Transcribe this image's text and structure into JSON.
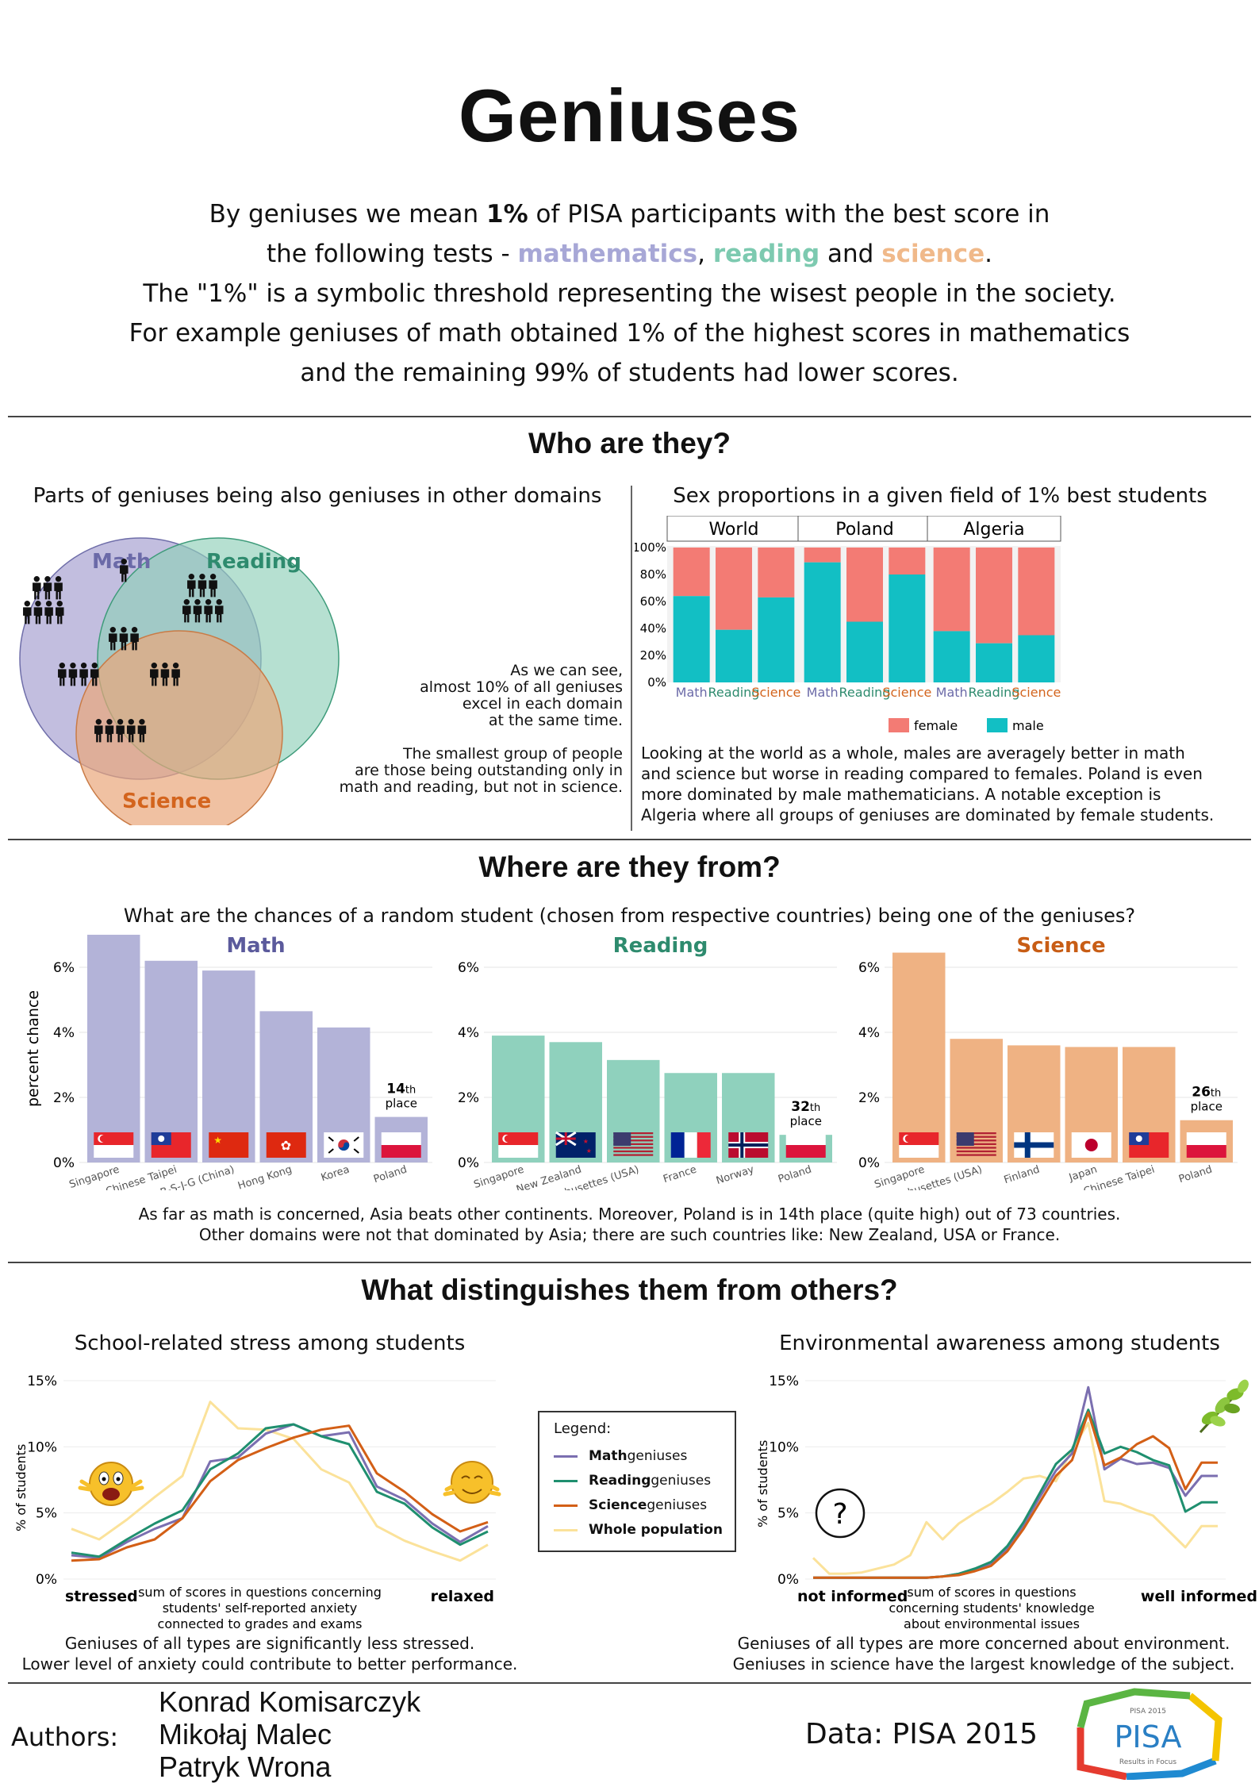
{
  "title": "Geniuses",
  "intro": {
    "l1a": "By geniuses we mean ",
    "l1b": "1%",
    "l1c": " of PISA participants with the best score in",
    "l2a": "the following tests - ",
    "l2math": "mathematics",
    "l2b": ", ",
    "l2read": "reading",
    "l2c": " and ",
    "l2sci": "science",
    "l2d": ".",
    "l3": "The \"1%\" is a symbolic threshold representing the wisest people in the society.",
    "l4": "For example geniuses of math obtained 1% of the highest scores in mathematics",
    "l5": "and the remaining 99% of students had lower scores."
  },
  "who": {
    "heading": "Who are they?",
    "venn": {
      "title": "Parts of geniuses being also geniuses in other domains",
      "math": "Math",
      "reading": "Reading",
      "science": "Science",
      "math_color": "#6b6aa8",
      "reading_color": "#2e8b6e",
      "science_color": "#d3641d"
    },
    "note1": [
      "As we can see,",
      "almost 10% of all geniuses",
      "excel in each domain",
      "at the same time."
    ],
    "note2": [
      "The smallest group of people",
      "are those being outstanding only in",
      "math and reading, but not in science."
    ],
    "sex": {
      "title": "Sex proportions in a given field of 1% best students",
      "female_label": "female",
      "male_label": "male",
      "female_color": "#f37b74",
      "male_color": "#12bfc4",
      "text": [
        "Looking at the world as a whole, males are averagely better in math",
        "and science but worse in reading compared to females. Poland is even",
        "more dominated by male mathematicians. A notable exception is",
        "Algeria where all groups of geniuses are dominated by female students."
      ]
    }
  },
  "where": {
    "heading": "Where are they from?",
    "subtitle": "What are the chances of a random student (chosen from respective countries) being one of the geniuses?",
    "ylabel": "percent chance",
    "text": [
      "As far as math is concerned, Asia beats other continents. Moreover, Poland is in 14th place (quite high) out of 73 countries.",
      "Other domains were not that dominated by Asia; there are such countries like: New Zealand, USA or France."
    ]
  },
  "distinguish": {
    "heading": "What distinguishes them from others?",
    "stress_title": "School-related stress among students",
    "env_title": "Environmental awareness among students",
    "ylabel": "% of students",
    "stress_left": "stressed",
    "stress_right": "relaxed",
    "stress_axis": [
      "sum of scores in questions concerning",
      "students' self-reported anxiety",
      "connected to grades and exams"
    ],
    "env_left": "not informed",
    "env_right": "well informed",
    "env_axis": [
      "sum of scores in questions",
      "concerning students' knowledge",
      "about environmental issues"
    ],
    "legend_title": "Legend:",
    "stress_text": [
      "Geniuses of all types are significantly less stressed.",
      "Lower level of anxiety could contribute to better performance."
    ],
    "env_text": [
      "Geniuses of all types are more concerned about environment.",
      "Geniuses in science have the largest knowledge of the subject."
    ]
  },
  "footer": {
    "authors_label": "Authors:",
    "authors": [
      "Konrad Komisarczyk",
      "Mikołaj Malec",
      "Patryk Wrona"
    ],
    "data_label": "Data: PISA 2015",
    "logo_top": "PISA 2015",
    "logo_main": "PISA",
    "logo_bottom": "Results in Focus"
  },
  "chart_data": [
    {
      "type": "bar",
      "subtype": "stacked-100",
      "panels": [
        "World",
        "Poland",
        "Algeria"
      ],
      "categories": [
        "Math",
        "Reading",
        "Science"
      ],
      "category_colors": [
        "#6b6aa8",
        "#2e8b6e",
        "#d3641d"
      ],
      "yticks": [
        "0%",
        "20%",
        "40%",
        "60%",
        "80%",
        "100%"
      ],
      "ylim": [
        0,
        100
      ],
      "series": [
        {
          "name": "male",
          "values": [
            [
              64,
              39,
              63
            ],
            [
              89,
              45,
              80
            ],
            [
              38,
              29,
              35
            ]
          ]
        },
        {
          "name": "female",
          "values": [
            [
              36,
              61,
              37
            ],
            [
              11,
              55,
              20
            ],
            [
              62,
              71,
              65
            ]
          ]
        }
      ],
      "legend": "bottom"
    },
    {
      "type": "bar",
      "title": "Math",
      "title_color": "#5b5a9c",
      "bar_color": "#b3b3d8",
      "categories": [
        "Singapore",
        "Chinese Taipei",
        "B-S-J-G (China)",
        "Hong Kong",
        "Korea",
        "Poland"
      ],
      "values": [
        7.0,
        6.2,
        5.9,
        4.65,
        4.15,
        1.4
      ],
      "yticks": [
        "0%",
        "2%",
        "4%",
        "6%"
      ],
      "ylim": [
        0,
        7
      ],
      "annotation": {
        "number": "14",
        "suffix": "th",
        "word": "place"
      }
    },
    {
      "type": "bar",
      "title": "Reading",
      "title_color": "#2e8b6e",
      "bar_color": "#8fd1bd",
      "categories": [
        "Singapore",
        "New Zealand",
        "Massachusettes (USA)",
        "France",
        "Norway",
        "Poland"
      ],
      "values": [
        3.9,
        3.7,
        3.15,
        2.75,
        2.75,
        0.85
      ],
      "yticks": [
        "0%",
        "2%",
        "4%",
        "6%"
      ],
      "ylim": [
        0,
        7
      ],
      "annotation": {
        "number": "32",
        "suffix": "th",
        "word": "place"
      }
    },
    {
      "type": "bar",
      "title": "Science",
      "title_color": "#c85d15",
      "bar_color": "#efb283",
      "categories": [
        "Singapore",
        "Massachusettes (USA)",
        "Finland",
        "Japan",
        "Chinese Taipei",
        "Poland"
      ],
      "values": [
        6.45,
        3.8,
        3.6,
        3.55,
        3.55,
        1.3
      ],
      "yticks": [
        "0%",
        "2%",
        "4%",
        "6%"
      ],
      "ylim": [
        0,
        7
      ],
      "annotation": {
        "number": "26",
        "suffix": "th",
        "word": "place"
      }
    },
    {
      "type": "line",
      "ylim": [
        0,
        15
      ],
      "yticks": [
        "0%",
        "5%",
        "10%",
        "15%"
      ],
      "x": [
        1,
        2,
        3,
        4,
        5,
        6,
        7,
        8,
        9,
        10,
        11,
        12,
        13,
        14,
        15,
        16
      ],
      "series": [
        {
          "name": "Math geniuses",
          "color": "#7b6fb0",
          "values": [
            1.8,
            1.6,
            2.8,
            3.8,
            4.6,
            8.9,
            9.2,
            11.0,
            11.7,
            10.8,
            11.1,
            7.0,
            6.0,
            4.2,
            2.8,
            4.0
          ]
        },
        {
          "name": "Reading geniuses",
          "color": "#1f8f6f",
          "values": [
            2.0,
            1.7,
            3.0,
            4.2,
            5.2,
            8.3,
            9.5,
            11.4,
            11.7,
            10.8,
            10.2,
            6.6,
            5.7,
            3.9,
            2.6,
            3.6
          ]
        },
        {
          "name": "Science geniuses",
          "color": "#d35f16",
          "values": [
            1.4,
            1.5,
            2.4,
            3.0,
            4.6,
            7.4,
            9.0,
            9.9,
            10.7,
            11.3,
            11.6,
            8.0,
            6.6,
            4.9,
            3.6,
            4.3
          ]
        },
        {
          "name": "Whole population",
          "color": "#fbe29a",
          "values": [
            3.8,
            3.0,
            4.5,
            6.2,
            7.8,
            13.4,
            11.4,
            11.3,
            10.6,
            8.3,
            7.3,
            4.0,
            2.9,
            2.1,
            1.4,
            2.6
          ]
        }
      ]
    },
    {
      "type": "line",
      "ylim": [
        0,
        15
      ],
      "yticks": [
        "0%",
        "5%",
        "10%",
        "15%"
      ],
      "x": [
        1,
        2,
        3,
        4,
        5,
        6,
        7,
        8,
        9,
        10,
        11,
        12,
        13,
        14,
        15,
        16,
        17,
        18,
        19,
        20,
        21,
        22,
        23,
        24,
        25,
        26
      ],
      "series": [
        {
          "name": "Math geniuses",
          "color": "#7b6fb0",
          "values": [
            0.1,
            0.1,
            0.1,
            0.1,
            0.1,
            0.1,
            0.1,
            0.1,
            0.2,
            0.4,
            0.7,
            1.2,
            2.3,
            4.1,
            6.2,
            8.2,
            9.5,
            14.5,
            8.3,
            9.1,
            8.7,
            8.8,
            8.4,
            6.3,
            7.8,
            7.8
          ]
        },
        {
          "name": "Reading geniuses",
          "color": "#1f8f6f",
          "values": [
            0.1,
            0.1,
            0.1,
            0.1,
            0.1,
            0.1,
            0.1,
            0.1,
            0.2,
            0.4,
            0.8,
            1.3,
            2.5,
            4.3,
            6.5,
            8.7,
            9.8,
            12.8,
            9.5,
            10.0,
            9.6,
            9.0,
            8.6,
            5.1,
            5.8,
            5.8
          ]
        },
        {
          "name": "Science geniuses",
          "color": "#d35f16",
          "values": [
            0.1,
            0.1,
            0.1,
            0.1,
            0.1,
            0.1,
            0.1,
            0.1,
            0.2,
            0.3,
            0.6,
            1.0,
            2.1,
            3.8,
            5.8,
            7.8,
            9.0,
            12.6,
            8.6,
            9.2,
            10.2,
            10.8,
            9.9,
            6.8,
            8.8,
            8.8
          ]
        },
        {
          "name": "Whole population",
          "color": "#fbe29a",
          "values": [
            1.6,
            0.4,
            0.4,
            0.5,
            0.8,
            1.1,
            1.8,
            4.3,
            3.0,
            4.2,
            5.0,
            5.7,
            6.6,
            7.6,
            7.8,
            7.4,
            9.8,
            11.8,
            5.9,
            5.7,
            5.2,
            4.8,
            3.6,
            2.4,
            4.0,
            4.0
          ]
        }
      ]
    }
  ]
}
